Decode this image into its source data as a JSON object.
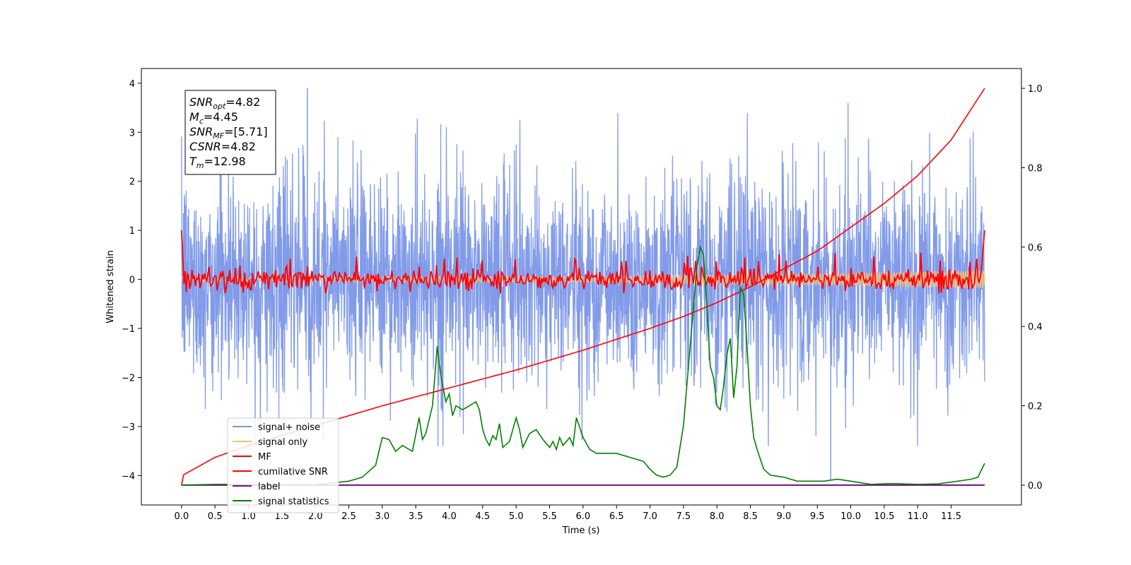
{
  "chart_data": {
    "type": "line",
    "xlabel": "Time (s)",
    "ylabel": "Whitened strain",
    "xlim": [
      -0.6,
      12.55
    ],
    "ylim": [
      -4.6,
      4.3
    ],
    "y2lim": [
      -0.05,
      1.05
    ],
    "x_ticks": [
      "0.0",
      "0.5",
      "1.0",
      "1.5",
      "2.0",
      "2.5",
      "3.0",
      "3.5",
      "4.0",
      "4.5",
      "5.0",
      "5.5",
      "6.0",
      "6.5",
      "7.0",
      "7.5",
      "8.0",
      "8.5",
      "9.0",
      "9.5",
      "10.0",
      "10.5",
      "11.0",
      "11.5"
    ],
    "y_ticks": [
      "4",
      "3",
      "2",
      "1",
      "0",
      "−1",
      "−2",
      "−3",
      "−4"
    ],
    "y2_ticks": [
      "1.0",
      "0.8",
      "0.6",
      "0.4",
      "0.2",
      "0.0"
    ],
    "grid": false,
    "legend_position": "lower-left",
    "stats_box": [
      {
        "base": "SNR",
        "sub": "opt",
        "value": "=4.82"
      },
      {
        "base": "M",
        "sub": "c",
        "value": "=4.45"
      },
      {
        "base": "SNR",
        "sub": "MF",
        "value": "=[5.71]"
      },
      {
        "base": "CSNR",
        "sub": "",
        "value": "=4.82"
      },
      {
        "base": "T",
        "sub": "m",
        "value": "=12.98"
      }
    ],
    "series": [
      {
        "name": "signal+ noise",
        "color": "#7b96e8",
        "axis": "left",
        "style": "noise band approx. -2.9 to 3.0, spikes to 3.9 / -4.1"
      },
      {
        "name": "signal only",
        "color": "#f5c07a",
        "axis": "left",
        "amplitude_envelope": {
          "x": [
            0.0,
            6.0,
            10.0,
            12.0
          ],
          "y": [
            0.05,
            0.06,
            0.12,
            0.18
          ]
        }
      },
      {
        "name": "MF",
        "color": "#ff0000",
        "axis": "left",
        "style": "oscillation about 0 with amplitude ~0.25, endpoints 1.0"
      },
      {
        "name": "cumilative SNR",
        "color": "#ff0000",
        "axis": "right",
        "x": [
          0.0,
          0.02,
          0.5,
          1.0,
          2.0,
          3.0,
          4.0,
          5.0,
          6.0,
          7.0,
          7.5,
          8.0,
          8.5,
          9.0,
          9.5,
          10.0,
          10.5,
          11.0,
          11.5,
          12.0
        ],
        "y": [
          0.0,
          0.025,
          0.07,
          0.1,
          0.15,
          0.2,
          0.245,
          0.29,
          0.34,
          0.395,
          0.425,
          0.46,
          0.5,
          0.545,
          0.59,
          0.65,
          0.71,
          0.78,
          0.87,
          1.0
        ]
      },
      {
        "name": "label",
        "color": "#7b0a7b",
        "axis": "right",
        "x": [
          0.0,
          12.0
        ],
        "y": [
          0.0,
          0.0
        ]
      },
      {
        "name": "signal statistics",
        "color": "#008000",
        "axis": "right",
        "x": [
          0.0,
          0.5,
          1.0,
          1.5,
          2.0,
          2.5,
          2.7,
          2.9,
          3.0,
          3.1,
          3.2,
          3.3,
          3.45,
          3.55,
          3.6,
          3.65,
          3.75,
          3.82,
          3.88,
          3.95,
          4.0,
          4.05,
          4.1,
          4.2,
          4.3,
          4.4,
          4.45,
          4.5,
          4.55,
          4.6,
          4.65,
          4.7,
          4.75,
          4.8,
          4.9,
          5.0,
          5.05,
          5.1,
          5.2,
          5.3,
          5.4,
          5.5,
          5.55,
          5.6,
          5.65,
          5.7,
          5.8,
          5.85,
          5.9,
          6.0,
          6.1,
          6.2,
          6.3,
          6.4,
          6.5,
          6.6,
          6.7,
          6.8,
          6.9,
          7.0,
          7.1,
          7.2,
          7.3,
          7.4,
          7.5,
          7.6,
          7.7,
          7.75,
          7.8,
          7.85,
          7.9,
          7.95,
          8.0,
          8.05,
          8.1,
          8.15,
          8.2,
          8.25,
          8.3,
          8.35,
          8.4,
          8.45,
          8.5,
          8.55,
          8.6,
          8.7,
          8.8,
          9.0,
          9.2,
          9.4,
          9.6,
          9.8,
          10.0,
          10.3,
          10.6,
          11.0,
          11.3,
          11.6,
          11.8,
          11.9,
          12.0
        ],
        "y": [
          0.0,
          0.002,
          0.002,
          0.001,
          0.001,
          0.01,
          0.02,
          0.05,
          0.12,
          0.115,
          0.085,
          0.1,
          0.085,
          0.17,
          0.115,
          0.13,
          0.2,
          0.35,
          0.27,
          0.21,
          0.23,
          0.175,
          0.2,
          0.19,
          0.2,
          0.21,
          0.19,
          0.14,
          0.115,
          0.1,
          0.125,
          0.115,
          0.155,
          0.095,
          0.11,
          0.17,
          0.14,
          0.095,
          0.13,
          0.14,
          0.115,
          0.095,
          0.11,
          0.09,
          0.12,
          0.1,
          0.12,
          0.1,
          0.17,
          0.12,
          0.09,
          0.08,
          0.08,
          0.08,
          0.08,
          0.075,
          0.07,
          0.065,
          0.06,
          0.04,
          0.025,
          0.02,
          0.025,
          0.045,
          0.15,
          0.35,
          0.55,
          0.6,
          0.58,
          0.45,
          0.3,
          0.27,
          0.2,
          0.19,
          0.25,
          0.33,
          0.37,
          0.22,
          0.3,
          0.5,
          0.48,
          0.35,
          0.2,
          0.12,
          0.09,
          0.04,
          0.025,
          0.02,
          0.01,
          0.01,
          0.01,
          0.015,
          0.01,
          0.002,
          0.004,
          0.002,
          0.003,
          0.01,
          0.015,
          0.02,
          0.055
        ]
      }
    ]
  }
}
